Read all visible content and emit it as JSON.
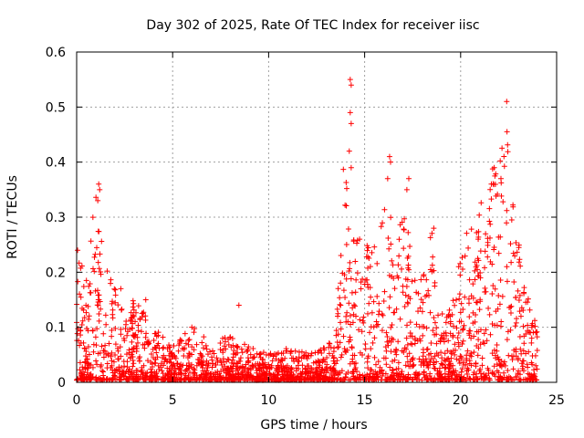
{
  "chart_data": {
    "type": "scatter",
    "title": "Day 302 of 2025, Rate Of TEC Index for receiver iisc",
    "xlabel": "GPS time / hours",
    "ylabel": "ROTI / TECUs",
    "xlim": [
      0,
      25
    ],
    "ylim": [
      0,
      0.6
    ],
    "xticks": [
      0,
      5,
      10,
      15,
      20,
      25
    ],
    "xtick_labels": [
      "0",
      "5",
      "10",
      "15",
      "20",
      "25"
    ],
    "yticks": [
      0,
      0.1,
      0.2,
      0.3,
      0.4,
      0.5,
      0.6
    ],
    "ytick_labels": [
      "0",
      "0.1",
      "0.2",
      "0.3",
      "0.4",
      "0.5",
      "0.6"
    ],
    "grid": true,
    "marker": "+",
    "color": "#ff0000",
    "series": [
      {
        "name": "ROTI",
        "profile_x": [
          0,
          0.5,
          1.0,
          1.5,
          2,
          2.5,
          3,
          4,
          5,
          6,
          7,
          8,
          9,
          10,
          11,
          12,
          13,
          13.5,
          14,
          14.5,
          15,
          15.5,
          16,
          16.5,
          17,
          17.5,
          18,
          18.5,
          19,
          19.5,
          20,
          20.5,
          21,
          21.5,
          22,
          22.5,
          23,
          23.5,
          24
        ],
        "profile_max": [
          0.24,
          0.19,
          0.36,
          0.22,
          0.17,
          0.12,
          0.15,
          0.1,
          0.06,
          0.1,
          0.07,
          0.08,
          0.06,
          0.05,
          0.06,
          0.05,
          0.06,
          0.09,
          0.55,
          0.3,
          0.29,
          0.25,
          0.41,
          0.25,
          0.37,
          0.2,
          0.18,
          0.28,
          0.12,
          0.15,
          0.23,
          0.3,
          0.33,
          0.39,
          0.39,
          0.51,
          0.26,
          0.16,
          0.09
        ],
        "outliers": [
          {
            "x": 0.05,
            "y": 0.24
          },
          {
            "x": 1.15,
            "y": 0.36
          },
          {
            "x": 1.2,
            "y": 0.35
          },
          {
            "x": 1.1,
            "y": 0.33
          },
          {
            "x": 2.3,
            "y": 0.17
          },
          {
            "x": 3.6,
            "y": 0.15
          },
          {
            "x": 6.0,
            "y": 0.1
          },
          {
            "x": 8.45,
            "y": 0.14
          },
          {
            "x": 14.25,
            "y": 0.55
          },
          {
            "x": 14.3,
            "y": 0.54
          },
          {
            "x": 14.25,
            "y": 0.49
          },
          {
            "x": 14.3,
            "y": 0.47
          },
          {
            "x": 14.2,
            "y": 0.42
          },
          {
            "x": 14.3,
            "y": 0.39
          },
          {
            "x": 16.3,
            "y": 0.41
          },
          {
            "x": 16.35,
            "y": 0.4
          },
          {
            "x": 16.2,
            "y": 0.37
          },
          {
            "x": 17.3,
            "y": 0.37
          },
          {
            "x": 17.2,
            "y": 0.35
          },
          {
            "x": 18.6,
            "y": 0.28
          },
          {
            "x": 21.75,
            "y": 0.39
          },
          {
            "x": 22.1,
            "y": 0.37
          },
          {
            "x": 22.4,
            "y": 0.51
          },
          {
            "x": 21.6,
            "y": 0.36
          }
        ]
      }
    ]
  }
}
